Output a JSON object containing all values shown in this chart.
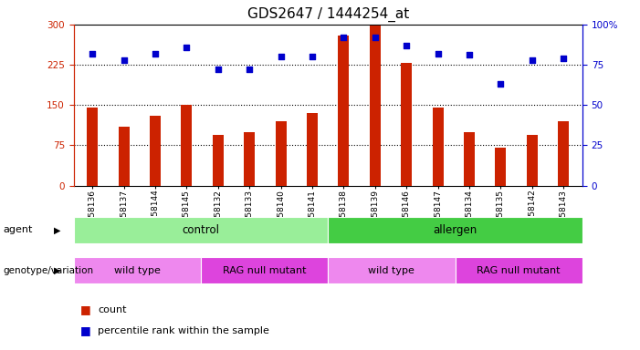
{
  "title": "GDS2647 / 1444254_at",
  "categories": [
    "GSM158136",
    "GSM158137",
    "GSM158144",
    "GSM158145",
    "GSM158132",
    "GSM158133",
    "GSM158140",
    "GSM158141",
    "GSM158138",
    "GSM158139",
    "GSM158146",
    "GSM158147",
    "GSM158134",
    "GSM158135",
    "GSM158142",
    "GSM158143"
  ],
  "counts": [
    145,
    110,
    130,
    150,
    95,
    100,
    120,
    135,
    280,
    298,
    228,
    145,
    100,
    70,
    95,
    120
  ],
  "percentiles": [
    82,
    78,
    82,
    86,
    72,
    72,
    80,
    80,
    92,
    92,
    87,
    82,
    81,
    63,
    78,
    79
  ],
  "bar_color": "#cc2200",
  "dot_color": "#0000cc",
  "ylim_left": [
    0,
    300
  ],
  "ylim_right": [
    0,
    100
  ],
  "yticks_left": [
    0,
    75,
    150,
    225,
    300
  ],
  "yticks_right": [
    0,
    25,
    50,
    75,
    100
  ],
  "ytick_labels_left": [
    "0",
    "75",
    "150",
    "225",
    "300"
  ],
  "ytick_labels_right": [
    "0",
    "25",
    "50",
    "75",
    "100%"
  ],
  "hlines": [
    75,
    150,
    225
  ],
  "agent_labels": [
    {
      "text": "control",
      "start": 0,
      "end": 8,
      "color": "#99ee99"
    },
    {
      "text": "allergen",
      "start": 8,
      "end": 16,
      "color": "#44cc44"
    }
  ],
  "genotype_labels": [
    {
      "text": "wild type",
      "start": 0,
      "end": 4,
      "color": "#ee88ee"
    },
    {
      "text": "RAG null mutant",
      "start": 4,
      "end": 8,
      "color": "#dd44dd"
    },
    {
      "text": "wild type",
      "start": 8,
      "end": 12,
      "color": "#ee88ee"
    },
    {
      "text": "RAG null mutant",
      "start": 12,
      "end": 16,
      "color": "#dd44dd"
    }
  ],
  "legend_count_label": "count",
  "legend_percentile_label": "percentile rank within the sample",
  "agent_row_label": "agent",
  "genotype_row_label": "genotype/variation",
  "axis_bg_color": "#ffffff",
  "fig_bg_color": "#ffffff",
  "tick_label_fontsize": 7.5,
  "axis_label_fontsize": 8,
  "title_fontsize": 11
}
